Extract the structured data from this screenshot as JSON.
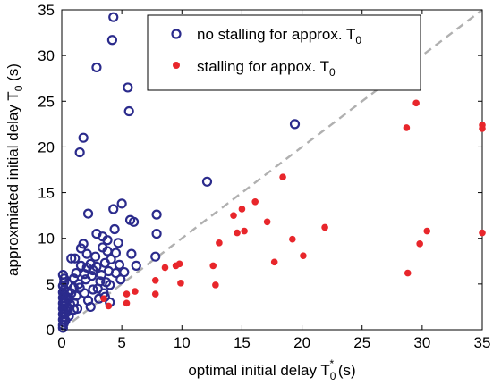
{
  "chart_data": {
    "type": "scatter",
    "xlabel": "optimal initial delay T",
    "xlabel_sub": "0",
    "xlabel_sup": "*",
    "xlabel_unit": " (s)",
    "ylabel": "approxmiated initial delay T",
    "ylabel_sub": "0",
    "ylabel_unit": " (s)",
    "xlim": [
      0,
      35
    ],
    "ylim": [
      0,
      35
    ],
    "xticks": [
      0,
      5,
      10,
      15,
      20,
      25,
      30,
      35
    ],
    "yticks": [
      0,
      5,
      10,
      15,
      20,
      25,
      30,
      35
    ],
    "grid": false,
    "legend_position": "top-right",
    "reference_line": {
      "style": "dashed",
      "color": "#b0b0b0",
      "from": [
        0,
        0
      ],
      "to": [
        35,
        35
      ]
    },
    "series": [
      {
        "name": "no stalling for approx. T",
        "name_sub": "0",
        "marker": "open-circle",
        "color": "#2b2b8c",
        "points": [
          [
            0.1,
            0.2
          ],
          [
            0.1,
            0.5
          ],
          [
            0.2,
            0.8
          ],
          [
            0.1,
            1.1
          ],
          [
            0.2,
            1.4
          ],
          [
            0.1,
            1.7
          ],
          [
            0.2,
            2.0
          ],
          [
            0.1,
            2.3
          ],
          [
            0.2,
            2.6
          ],
          [
            0.1,
            2.9
          ],
          [
            0.2,
            3.2
          ],
          [
            0.1,
            3.5
          ],
          [
            0.2,
            3.8
          ],
          [
            0.1,
            4.1
          ],
          [
            0.2,
            4.4
          ],
          [
            0.1,
            4.8
          ],
          [
            0.2,
            5.2
          ],
          [
            0.2,
            5.6
          ],
          [
            0.1,
            6.0
          ],
          [
            0.3,
            1.0
          ],
          [
            0.3,
            1.8
          ],
          [
            0.4,
            2.4
          ],
          [
            0.3,
            3.0
          ],
          [
            0.4,
            3.6
          ],
          [
            0.5,
            2.0
          ],
          [
            0.5,
            4.2
          ],
          [
            0.6,
            1.5
          ],
          [
            0.7,
            2.8
          ],
          [
            0.6,
            3.4
          ],
          [
            0.5,
            5.0
          ],
          [
            0.8,
            4.0
          ],
          [
            0.8,
            7.8
          ],
          [
            1.0,
            2.2
          ],
          [
            1.0,
            3.0
          ],
          [
            1.0,
            4.6
          ],
          [
            1.0,
            5.6
          ],
          [
            1.1,
            7.8
          ],
          [
            1.2,
            6.2
          ],
          [
            1.2,
            3.7
          ],
          [
            1.3,
            2.3
          ],
          [
            1.4,
            5.0
          ],
          [
            1.5,
            4.6
          ],
          [
            1.6,
            7.0
          ],
          [
            1.6,
            8.9
          ],
          [
            1.5,
            19.4
          ],
          [
            1.8,
            21.0
          ],
          [
            1.8,
            9.4
          ],
          [
            1.9,
            6.1
          ],
          [
            1.9,
            4.0
          ],
          [
            2.0,
            5.5
          ],
          [
            2.1,
            6.8
          ],
          [
            2.1,
            8.3
          ],
          [
            2.2,
            12.7
          ],
          [
            2.2,
            3.2
          ],
          [
            2.4,
            2.5
          ],
          [
            2.4,
            7.2
          ],
          [
            2.5,
            5.9
          ],
          [
            2.6,
            6.5
          ],
          [
            2.6,
            4.4
          ],
          [
            2.8,
            8.0
          ],
          [
            2.9,
            28.7
          ],
          [
            2.9,
            6.9
          ],
          [
            2.9,
            10.5
          ],
          [
            3.0,
            4.5
          ],
          [
            3.1,
            3.4
          ],
          [
            3.2,
            5.3
          ],
          [
            3.3,
            6.0
          ],
          [
            3.4,
            9.0
          ],
          [
            3.4,
            10.2
          ],
          [
            3.5,
            4.0
          ],
          [
            3.6,
            7.3
          ],
          [
            3.6,
            3.6
          ],
          [
            3.7,
            5.2
          ],
          [
            3.8,
            8.6
          ],
          [
            3.8,
            9.8
          ],
          [
            3.9,
            6.4
          ],
          [
            4.0,
            3.0
          ],
          [
            4.0,
            4.9
          ],
          [
            4.1,
            7.7
          ],
          [
            4.2,
            31.7
          ],
          [
            4.3,
            34.2
          ],
          [
            4.3,
            13.2
          ],
          [
            4.4,
            11.0
          ],
          [
            4.5,
            6.2
          ],
          [
            4.5,
            8.4
          ],
          [
            4.7,
            9.5
          ],
          [
            4.8,
            7.1
          ],
          [
            4.9,
            5.5
          ],
          [
            5.0,
            13.8
          ],
          [
            5.2,
            6.3
          ],
          [
            5.5,
            26.5
          ],
          [
            5.6,
            23.9
          ],
          [
            5.7,
            12.0
          ],
          [
            5.8,
            8.3
          ],
          [
            6.0,
            11.8
          ],
          [
            6.2,
            7.0
          ],
          [
            7.9,
            12.6
          ],
          [
            7.9,
            10.5
          ],
          [
            7.8,
            8.0
          ],
          [
            12.1,
            16.2
          ],
          [
            19.4,
            22.5
          ]
        ]
      },
      {
        "name": "stalling for appox. T",
        "name_sub": "0",
        "marker": "filled-dot",
        "color": "#e8262b",
        "points": [
          [
            3.5,
            3.4
          ],
          [
            3.9,
            2.6
          ],
          [
            5.4,
            3.9
          ],
          [
            5.4,
            2.9
          ],
          [
            6.1,
            4.2
          ],
          [
            7.8,
            5.4
          ],
          [
            7.8,
            3.9
          ],
          [
            8.6,
            6.8
          ],
          [
            9.5,
            7.0
          ],
          [
            9.8,
            7.2
          ],
          [
            9.9,
            5.1
          ],
          [
            12.6,
            7.0
          ],
          [
            12.8,
            4.9
          ],
          [
            13.1,
            9.5
          ],
          [
            14.3,
            12.5
          ],
          [
            14.6,
            10.6
          ],
          [
            15.0,
            13.2
          ],
          [
            15.2,
            10.8
          ],
          [
            16.1,
            14.0
          ],
          [
            17.1,
            11.8
          ],
          [
            17.7,
            7.4
          ],
          [
            18.4,
            16.7
          ],
          [
            19.2,
            9.9
          ],
          [
            20.1,
            8.1
          ],
          [
            21.9,
            11.2
          ],
          [
            28.7,
            22.1
          ],
          [
            28.8,
            6.2
          ],
          [
            29.5,
            24.8
          ],
          [
            29.8,
            9.4
          ],
          [
            30.4,
            10.8
          ],
          [
            35.0,
            22.4
          ],
          [
            35.0,
            22.0
          ],
          [
            35.0,
            10.6
          ]
        ]
      }
    ]
  }
}
